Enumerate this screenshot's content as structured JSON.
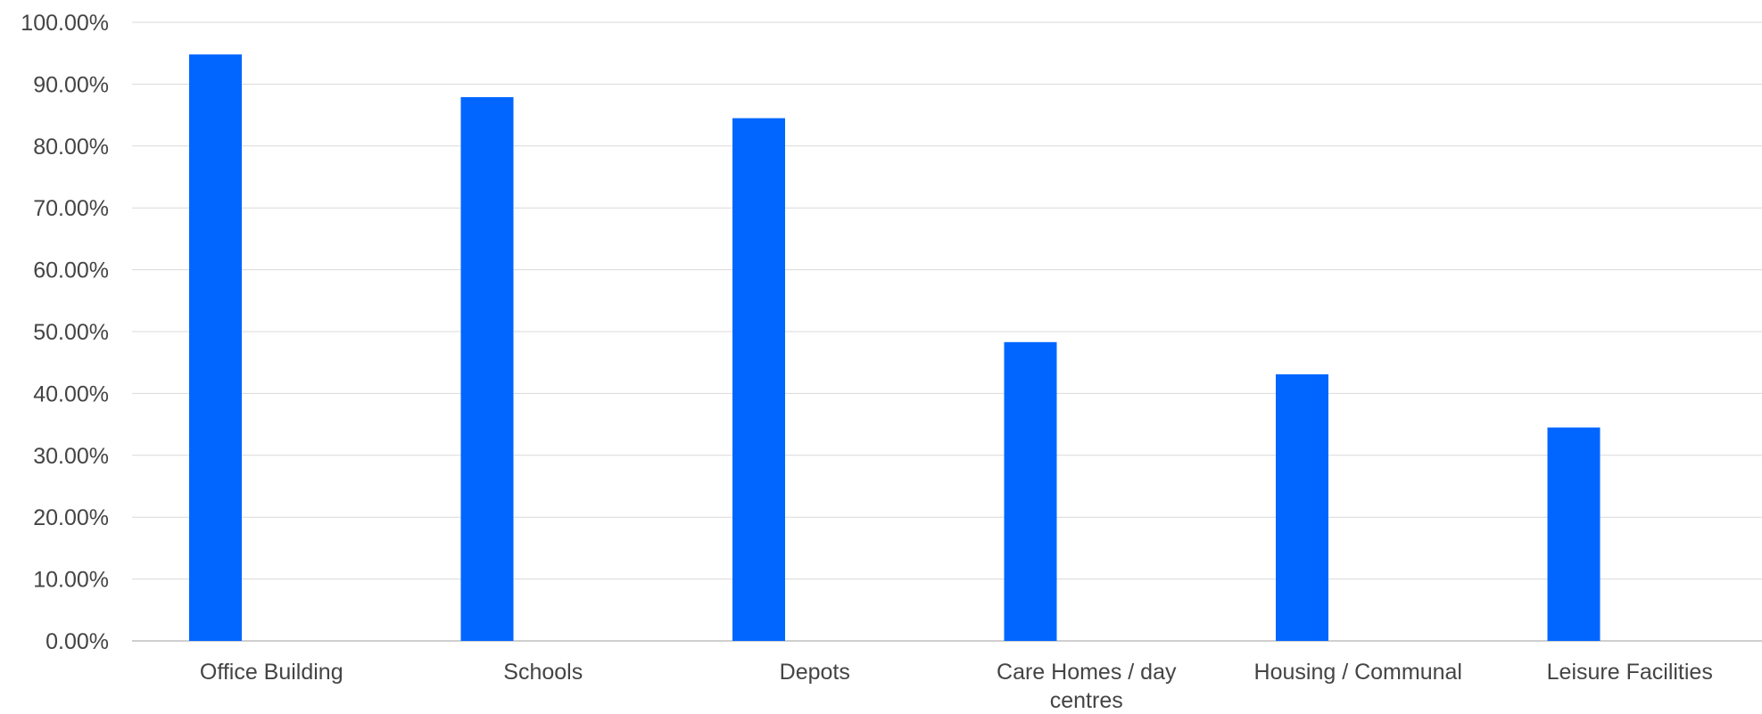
{
  "chart_data": {
    "type": "bar",
    "title": "",
    "xlabel": "",
    "ylabel": "",
    "categories": [
      [
        "Office Building"
      ],
      [
        "Schools"
      ],
      [
        "Depots"
      ],
      [
        "Care Homes / day",
        "centres"
      ],
      [
        "Housing / Communal"
      ],
      [
        "Leisure Facilities"
      ]
    ],
    "values": [
      0.948,
      0.879,
      0.845,
      0.483,
      0.431,
      0.345
    ],
    "ylim": [
      0,
      1.0
    ],
    "yticks": [
      "0.00%",
      "10.00%",
      "20.00%",
      "30.00%",
      "40.00%",
      "50.00%",
      "60.00%",
      "70.00%",
      "80.00%",
      "90.00%",
      "100.00%"
    ],
    "grid": true,
    "legend": "none",
    "colors": {
      "bar": "#0066ff",
      "grid": "#d9d9d9",
      "axis": "#bfbfbf",
      "text": "#444444"
    }
  }
}
